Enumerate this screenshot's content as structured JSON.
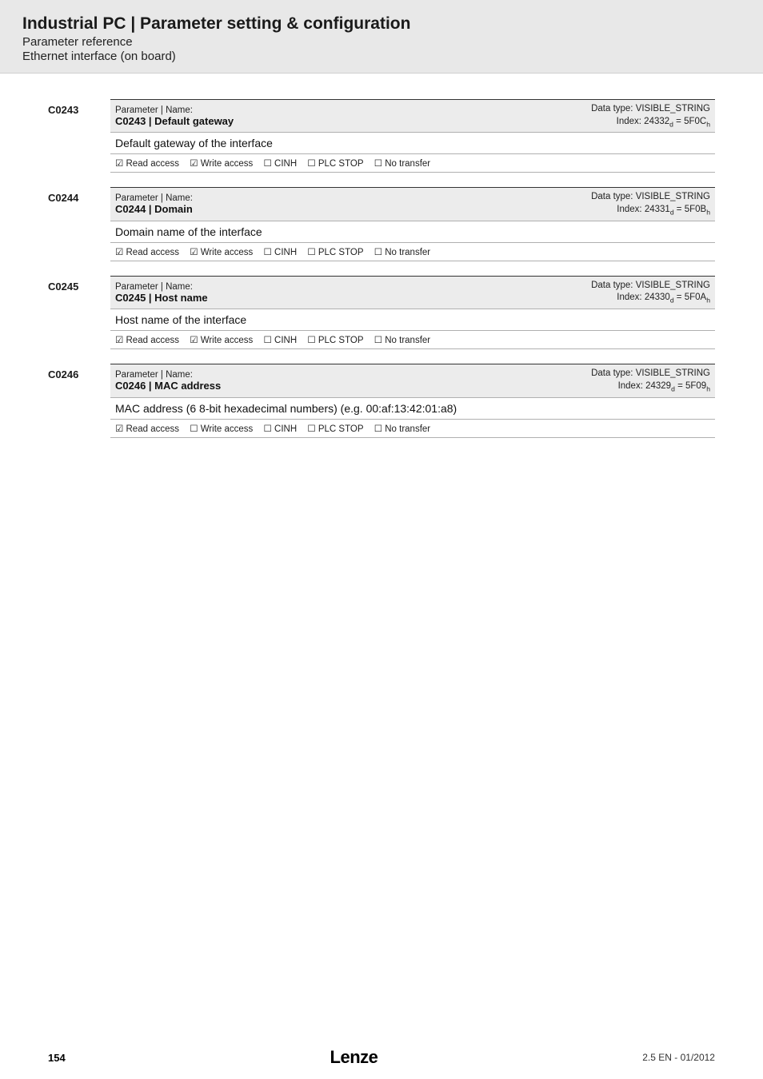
{
  "header": {
    "title": "Industrial PC | Parameter setting & configuration",
    "sub1": "Parameter reference",
    "sub2": "Ethernet interface (on board)"
  },
  "params": [
    {
      "code": "C0243",
      "pn_label": "Parameter | Name:",
      "name": "C0243 | Default gateway",
      "datatype": "Data type: VISIBLE_STRING",
      "index_l": "Index: 24332",
      "index_sub1": "d",
      "index_mid": " = 5F0C",
      "index_sub2": "h",
      "desc": "Default gateway of the interface",
      "flags": {
        "read": "☑ Read access",
        "write": "☑ Write access",
        "cinh": "☐ CINH",
        "plc": "☐ PLC STOP",
        "notr": "☐ No transfer"
      }
    },
    {
      "code": "C0244",
      "pn_label": "Parameter | Name:",
      "name": "C0244 | Domain",
      "datatype": "Data type: VISIBLE_STRING",
      "index_l": "Index: 24331",
      "index_sub1": "d",
      "index_mid": " = 5F0B",
      "index_sub2": "h",
      "desc": "Domain name of the interface",
      "flags": {
        "read": "☑ Read access",
        "write": "☑ Write access",
        "cinh": "☐ CINH",
        "plc": "☐ PLC STOP",
        "notr": "☐ No transfer"
      }
    },
    {
      "code": "C0245",
      "pn_label": "Parameter | Name:",
      "name": "C0245 | Host name",
      "datatype": "Data type: VISIBLE_STRING",
      "index_l": "Index: 24330",
      "index_sub1": "d",
      "index_mid": " = 5F0A",
      "index_sub2": "h",
      "desc": "Host name of the interface",
      "flags": {
        "read": "☑ Read access",
        "write": "☑ Write access",
        "cinh": "☐ CINH",
        "plc": "☐ PLC STOP",
        "notr": "☐ No transfer"
      }
    },
    {
      "code": "C0246",
      "pn_label": "Parameter | Name:",
      "name": "C0246 | MAC address",
      "datatype": "Data type: VISIBLE_STRING",
      "index_l": "Index: 24329",
      "index_sub1": "d",
      "index_mid": " = 5F09",
      "index_sub2": "h",
      "desc": "MAC address (6 8-bit hexadecimal numbers) (e.g. 00:af:13:42:01:a8)",
      "flags": {
        "read": "☑ Read access",
        "write": "☐ Write access",
        "cinh": "☐ CINH",
        "plc": "☐ PLC STOP",
        "notr": "☐ No transfer"
      }
    }
  ],
  "footer": {
    "page": "154",
    "logo": "Lenze",
    "version": "2.5 EN - 01/2012"
  }
}
